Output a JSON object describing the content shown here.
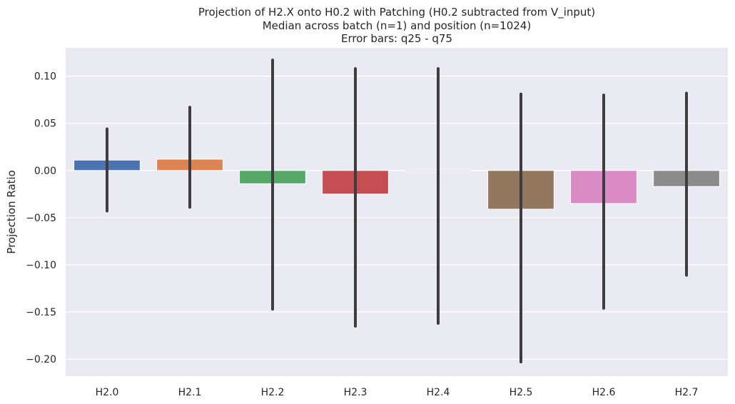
{
  "chart_data": {
    "type": "bar",
    "title": [
      "Projection of H2.X onto H0.2 with Patching (H0.2 subtracted from V_input)",
      "Median across batch (n=1) and position (n=1024)",
      "Error bars: q25 - q75"
    ],
    "xlabel": "",
    "ylabel": "Projection Ratio",
    "categories": [
      "H2.0",
      "H2.1",
      "H2.2",
      "H2.3",
      "H2.4",
      "H2.5",
      "H2.6",
      "H2.7"
    ],
    "values": [
      0.011,
      0.012,
      -0.014,
      -0.025,
      -0.001,
      -0.041,
      -0.035,
      -0.017
    ],
    "error_low": [
      -0.043,
      -0.039,
      -0.147,
      -0.165,
      -0.162,
      -0.203,
      -0.146,
      -0.111
    ],
    "error_high": [
      0.044,
      0.067,
      0.117,
      0.108,
      0.108,
      0.081,
      0.08,
      0.082
    ],
    "colors": [
      "#4c72b0",
      "#dd8452",
      "#55a868",
      "#c44e52",
      "#8172b3",
      "#937860",
      "#da8bc3",
      "#8c8c8c"
    ],
    "error_color": "#3d3d3d",
    "yticks": [
      0.1,
      0.05,
      0.0,
      -0.05,
      -0.1,
      -0.15,
      -0.2
    ],
    "ytick_labels": [
      "0.10",
      "0.05",
      "0.00",
      "−0.05",
      "−0.10",
      "−0.15",
      "−0.20"
    ],
    "ylim": [
      -0.218,
      0.13
    ],
    "grid": true,
    "background": "#eaeaf2"
  }
}
